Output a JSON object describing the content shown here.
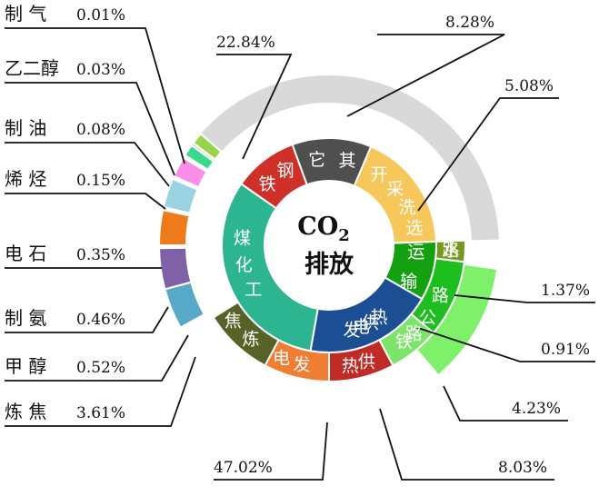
{
  "center": {
    "line1": "CO",
    "sub": "2",
    "line2": "排放"
  },
  "inner_segments": [
    {
      "name": "运输",
      "color": "#15a011"
    },
    {
      "name": "发电供热",
      "color": "#1b4e93"
    },
    {
      "name": "煤化工",
      "color": "#2db592"
    },
    {
      "name": "钢铁",
      "color": "#cf3027"
    },
    {
      "name": "其它",
      "color": "#4f4f4f"
    },
    {
      "name": "开采洗选",
      "color": "#f6c75a"
    }
  ],
  "middle_segments": [
    {
      "name": "公路",
      "color": "#1fbe1f"
    },
    {
      "name": "水路",
      "color": "#739a1c"
    },
    {
      "name": "供热",
      "color": "#c02b26"
    },
    {
      "name": "发电",
      "color": "#ef7d32"
    },
    {
      "name": "炼焦",
      "color": "#576227"
    },
    {
      "name": "铁路",
      "color": "#7ce46a"
    }
  ],
  "outer_segments": [
    {
      "name": "铁路",
      "color": "#7ef06a"
    },
    {
      "name": "甲醇",
      "color": "#58a8c7"
    },
    {
      "name": "制氨",
      "color": "#8060a6"
    },
    {
      "name": "电石",
      "color": "#ee7a1a"
    },
    {
      "name": "烯烃",
      "color": "#9cd3e0"
    },
    {
      "name": "制油",
      "color": "#fa8ee8"
    },
    {
      "name": "乙二醇",
      "color": "#37d98a"
    },
    {
      "name": "制气",
      "color": "#99d54a"
    }
  ],
  "callouts": [
    {
      "id": "zhiqi",
      "name": "制  气",
      "value": "0.01%"
    },
    {
      "id": "yierchun",
      "name": "乙二醇",
      "value": "0.03%"
    },
    {
      "id": "zhiyou",
      "name": "制  油",
      "value": "0.08%"
    },
    {
      "id": "xiting",
      "name": "烯  烃",
      "value": "0.15%"
    },
    {
      "id": "dianshi",
      "name": "电  石",
      "value": "0.35%"
    },
    {
      "id": "zhian",
      "name": "制  氨",
      "value": "0.46%"
    },
    {
      "id": "jiachun",
      "name": "甲  醇",
      "value": "0.52%"
    },
    {
      "id": "lianjiao",
      "name": "炼  焦",
      "value": "3.61%"
    },
    {
      "id": "gangtie",
      "name": "",
      "value": "22.84%"
    },
    {
      "id": "qita",
      "name": "",
      "value": "8.28%"
    },
    {
      "id": "kaicai",
      "name": "",
      "value": "5.08%"
    },
    {
      "id": "shuilu",
      "name": "",
      "value": "1.37%"
    },
    {
      "id": "gonglu",
      "name": "",
      "value": "0.91%"
    },
    {
      "id": "tielu",
      "name": "",
      "value": "4.23%"
    },
    {
      "id": "fadian",
      "name": "",
      "value": "47.02%"
    },
    {
      "id": "gongre",
      "name": "",
      "value": "8.03%"
    }
  ]
}
